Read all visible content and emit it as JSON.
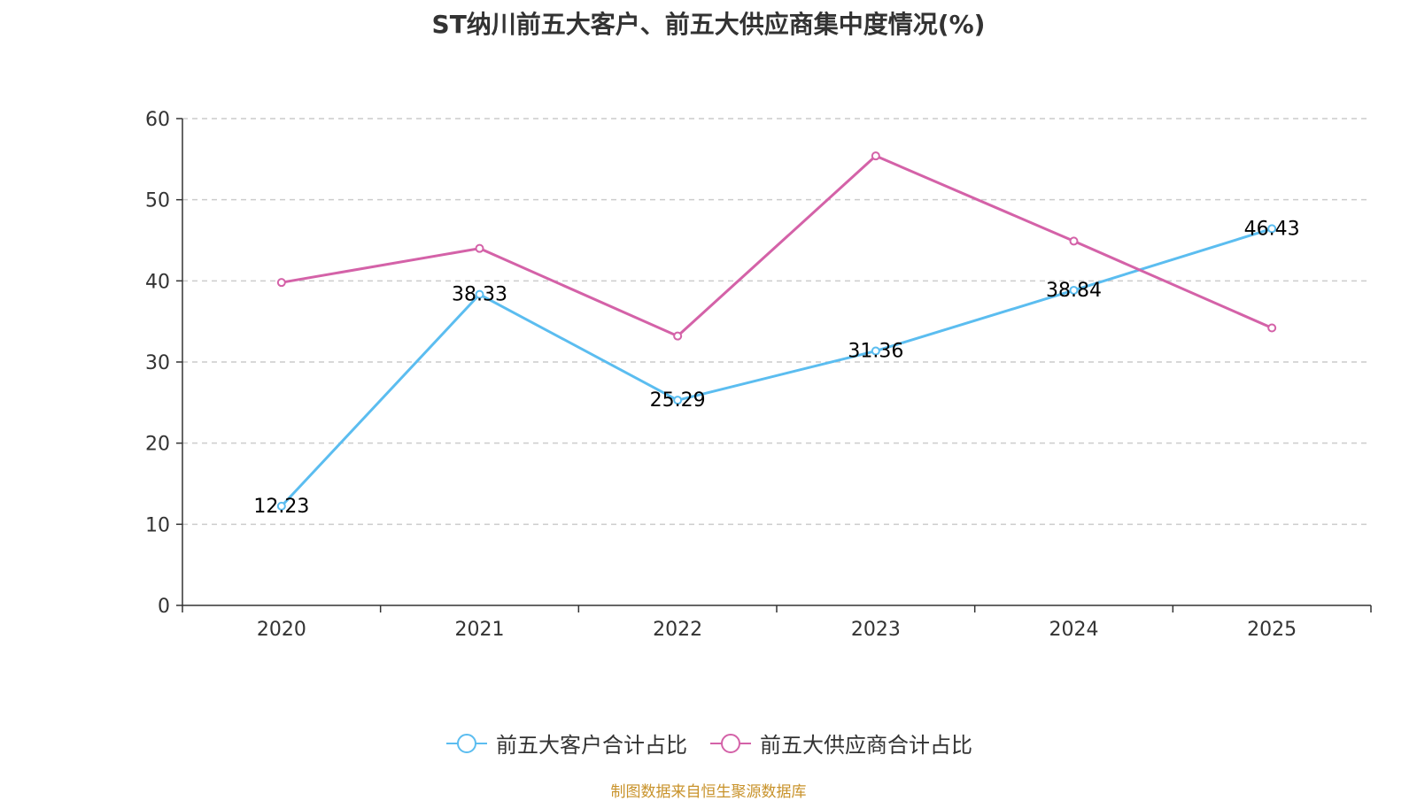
{
  "colors": {
    "customer": "#5bbdf0",
    "supplier": "#d462a8",
    "axis": "#333333",
    "grid": "#cccccc",
    "source": "#c8922a"
  },
  "chart_data": {
    "type": "line",
    "title": "ST纳川前五大客户、前五大供应商集中度情况(%)",
    "categories": [
      "2020",
      "2021",
      "2022",
      "2023",
      "2024",
      "2025"
    ],
    "ylim": [
      0,
      60
    ],
    "yticks": [
      0,
      10,
      20,
      30,
      40,
      50,
      60
    ],
    "grid": "horizontal-dashed",
    "legend_position": "bottom-center",
    "series": [
      {
        "name": "前五大客户合计占比",
        "values": [
          12.23,
          38.33,
          25.29,
          31.36,
          38.84,
          46.43
        ],
        "show_labels": true
      },
      {
        "name": "前五大供应商合计占比",
        "values": [
          39.8,
          44.0,
          33.2,
          55.4,
          44.9,
          34.2
        ],
        "show_labels": false
      }
    ]
  },
  "source_note": "制图数据来自恒生聚源数据库"
}
